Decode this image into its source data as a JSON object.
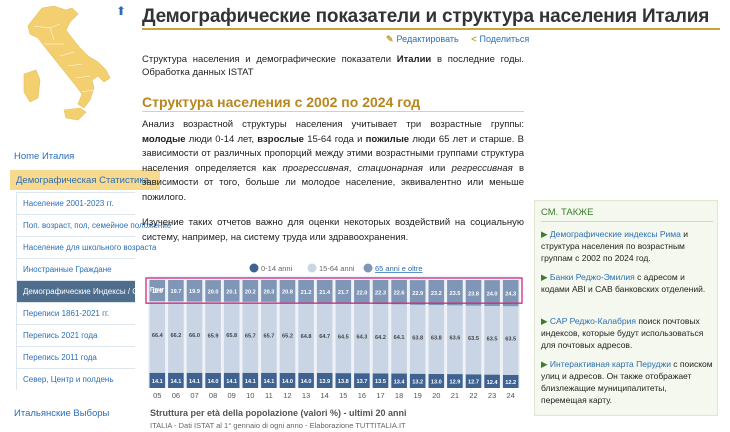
{
  "page": {
    "title": "Демографические показатели и структура населения Италия",
    "actions": {
      "edit": "Редактировать",
      "share": "Поделиться"
    },
    "intro_parts": [
      "Структура населения и демографические показатели ",
      "Италии",
      " в последние годы. Обработка данных ISTAT"
    ],
    "section_title": "Структура населения с 2002 по 2024 год",
    "para1": {
      "a": "Анализ возрастной структуры населения учитывает три возрастные группы: ",
      "b": "молодые",
      "c": " люди 0-14 лет, ",
      "d": "взрослые",
      "e": " 15-64 года и ",
      "f": "пожилые",
      "g": " люди 65 лет и старше. В зависимости от различных пропорций между этими возрастными группами структура населения определяется как ",
      "h": "прогрессивная",
      "i": ", ",
      "j": "стационарная",
      "k": " или ",
      "l": "регрессивная",
      "m": " в зависимости от того, больше ли молодое население, эквивалентно или меньше пожилого."
    },
    "para2": "Изучение таких отчетов важно для оценки некоторых воздействий на социальную систему, например, на систему труда или здравоохранения."
  },
  "sidebar": {
    "home": "Home Италия",
    "demographics": "Демографическая Статистика",
    "items": [
      "Население 2001-2023 гг.",
      "Поп. возраст, пол, семейное положение",
      "Население для школьного возраста",
      "Иностранные Граждане",
      "Демографические Индексы / Структура",
      "Переписи 1861-2021 гг.",
      "Перепись 2021 года",
      "Перепись 2011 года",
      "Север, Центр и полдень"
    ],
    "elections": "Итальянские Выборы"
  },
  "see_also": {
    "title": "СМ. ТАКЖЕ",
    "items": [
      {
        "link": "Демографические индексы Рима",
        "text": " и структура населения по возрастным группам с 2002 по 2024 год."
      },
      {
        "link": "Банки Реджо-Эмилия",
        "text": " с адресом и кодами ABI и CAB банковских отделений."
      },
      {
        "link": "CAP Реджо-Калабрия",
        "text": " поиск почтовых индексов, которые будут использоваться для почтовых адресов."
      },
      {
        "link": "Интерактивная карта Перуджи",
        "text": " с поиском улиц и адресов. Он также отображает близлежащие муниципалитеты, перемещая карту."
      }
    ]
  },
  "chart_data": {
    "type": "bar",
    "stacked": true,
    "title": "Struttura per età della popolazione (valori %) - ultimi 20 anni",
    "source": "ITALIA - Dati ISTAT al 1° gennaio di ogni anno - Elaborazione TUTTITALIA.IT",
    "categories": [
      "05",
      "06",
      "07",
      "08",
      "09",
      "10",
      "11",
      "12",
      "13",
      "14",
      "15",
      "16",
      "17",
      "18",
      "19",
      "20",
      "21",
      "22",
      "23",
      "24"
    ],
    "legend": [
      "0-14 anni",
      "15-64 anni",
      "65 anni e oltre"
    ],
    "legend_active": "65 anni e oltre",
    "series": [
      {
        "name": "0-14 anni",
        "color": "#3f6291",
        "values": [
          14.1,
          14.1,
          14.1,
          14.0,
          14.1,
          14.1,
          14.1,
          14.0,
          14.0,
          13.9,
          13.8,
          13.7,
          13.5,
          13.4,
          13.2,
          13.0,
          12.9,
          12.7,
          12.4,
          12.2
        ]
      },
      {
        "name": "15-64 anni",
        "color": "#c9d5e4",
        "values": [
          66.4,
          66.2,
          66.0,
          65.9,
          65.8,
          65.7,
          65.7,
          65.2,
          64.8,
          64.7,
          64.5,
          64.3,
          64.2,
          64.1,
          63.8,
          63.8,
          63.6,
          63.5,
          63.5,
          63.5
        ]
      },
      {
        "name": "65 anni e oltre",
        "color": "#7f96b6",
        "values": [
          19.6,
          19.7,
          19.9,
          20.0,
          20.1,
          20.2,
          20.3,
          20.8,
          21.2,
          21.4,
          21.7,
          22.0,
          22.3,
          22.6,
          22.9,
          23.2,
          23.5,
          23.8,
          24.0,
          24.3
        ]
      }
    ],
    "overlay_label": "Приг",
    "ylim": [
      0,
      100
    ]
  }
}
